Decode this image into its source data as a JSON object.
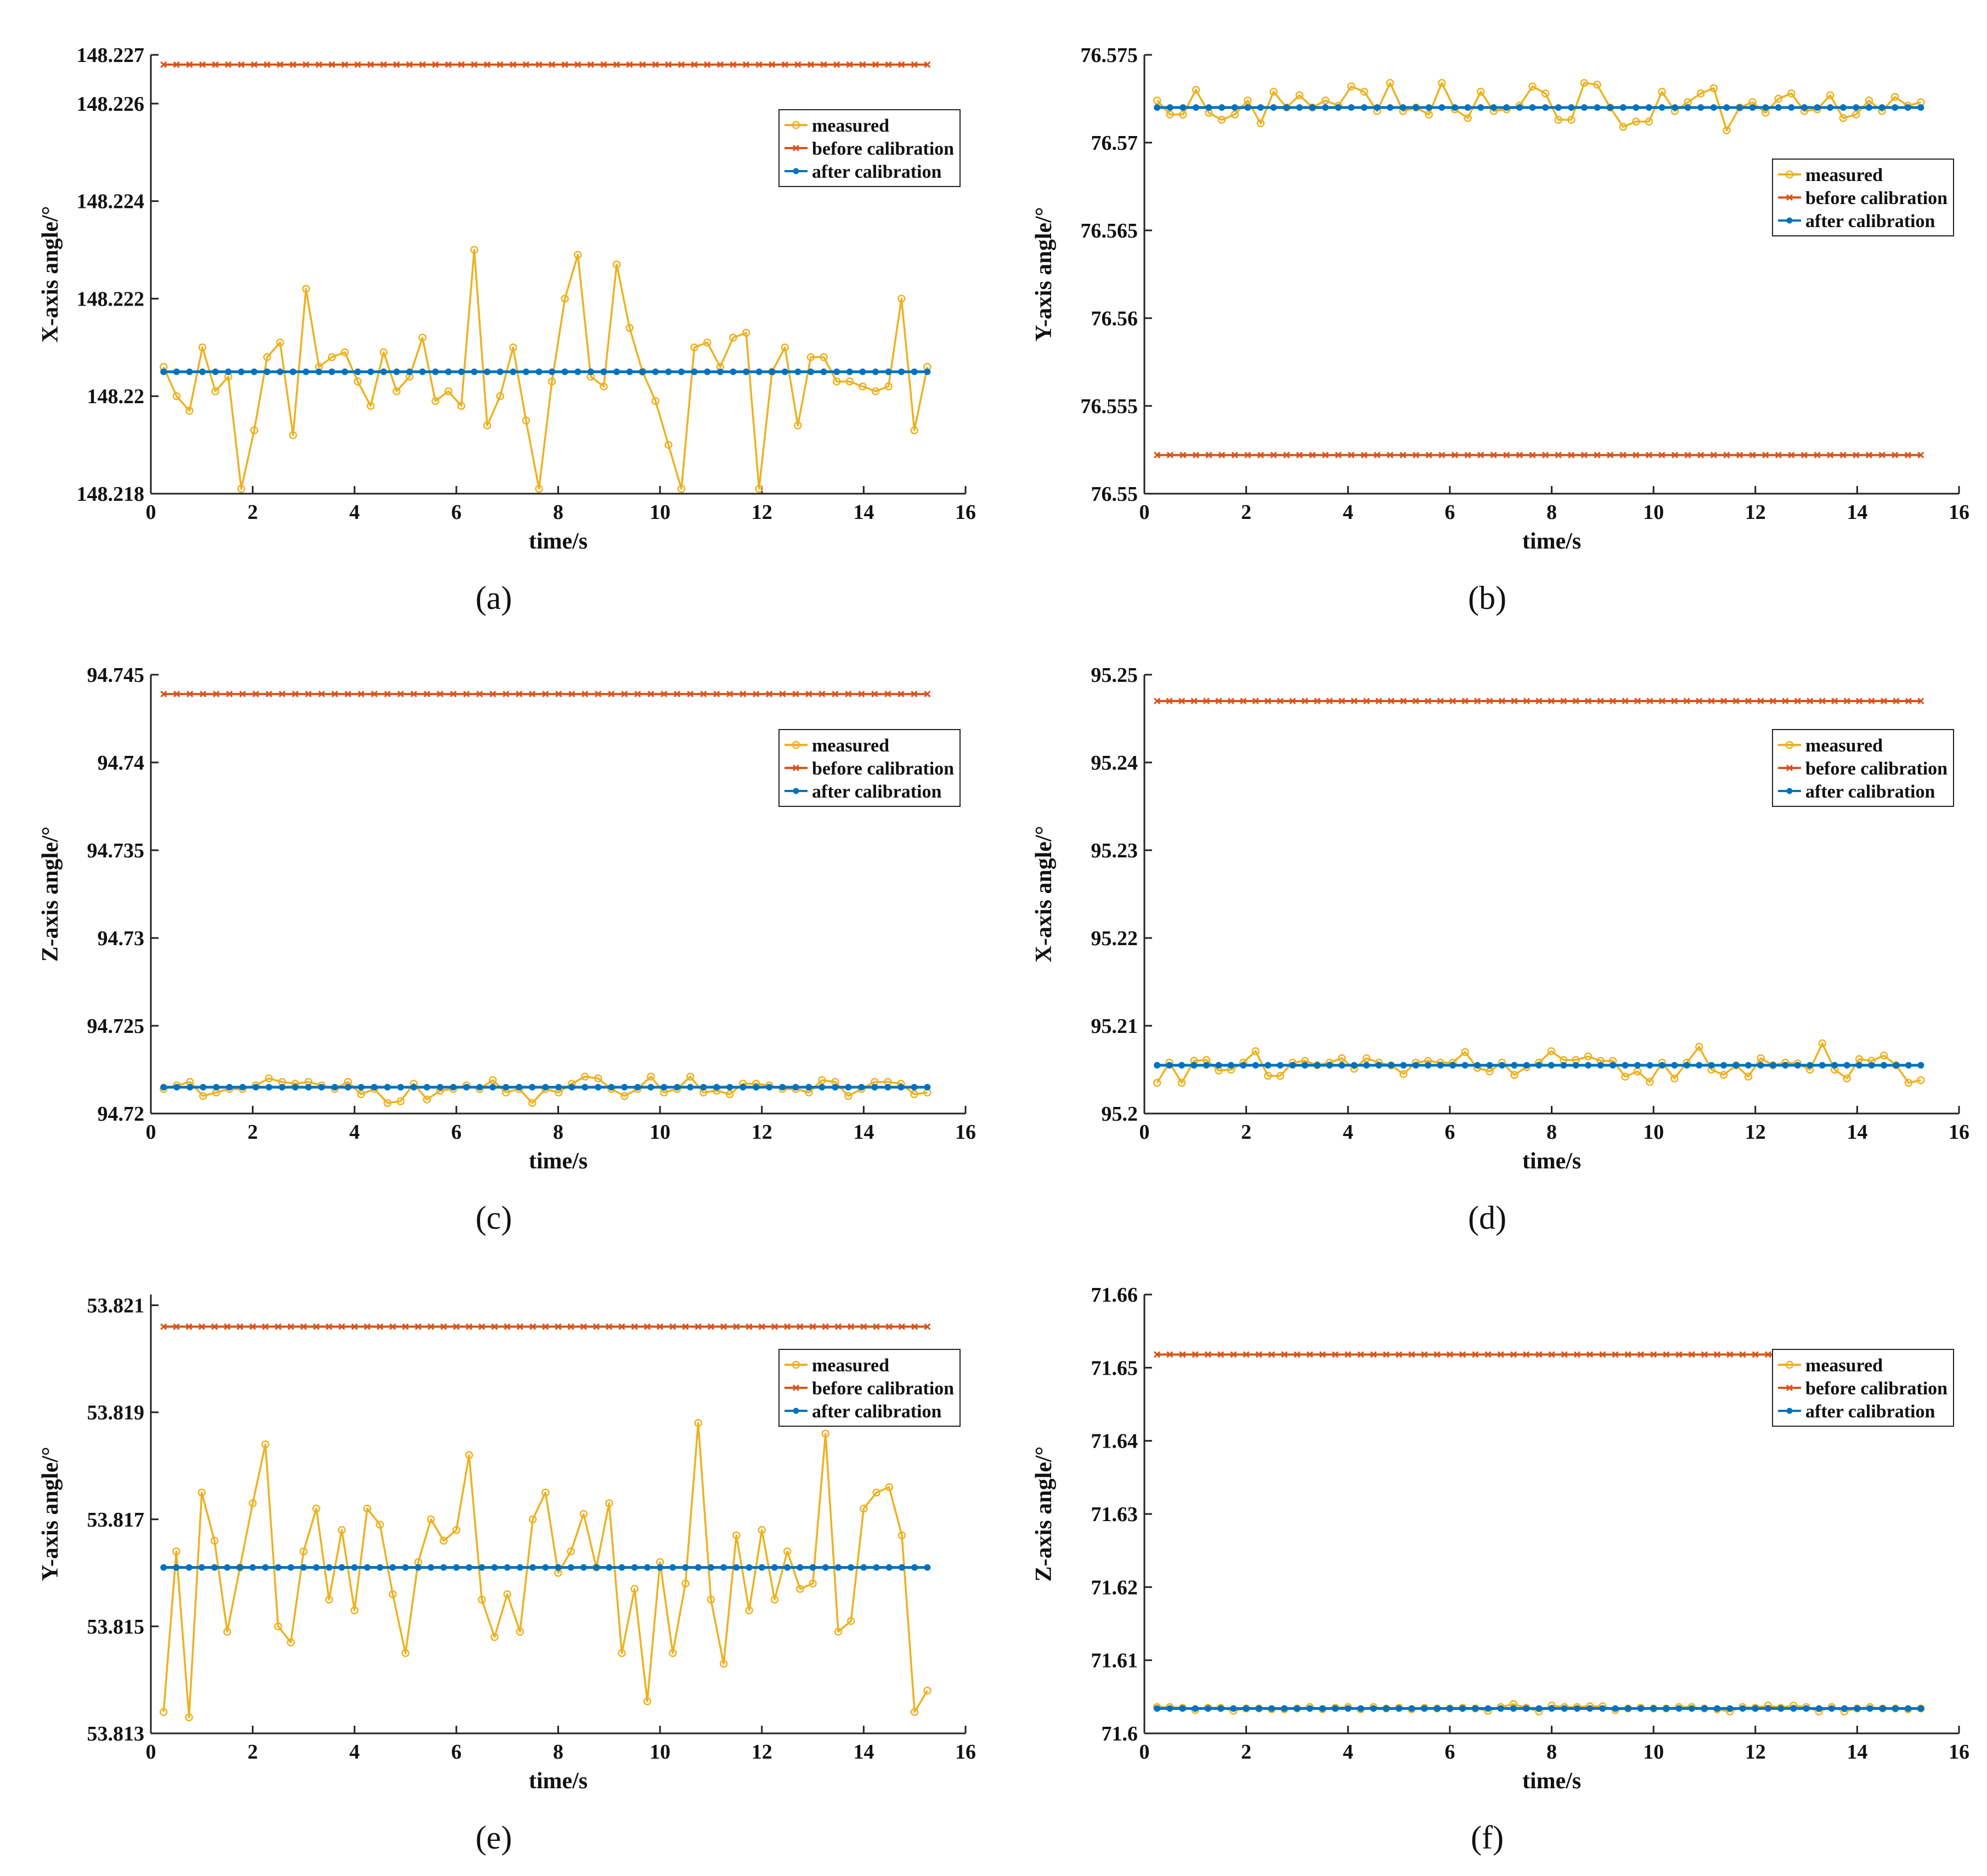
{
  "chart_data": [
    {
      "type": "line",
      "caption": "(a)",
      "xlabel": "time/s",
      "ylabel": "X-axis angle/°",
      "xlim": [
        0,
        16
      ],
      "ylim": [
        148.218,
        148.227
      ],
      "xticks": [
        "0",
        "2",
        "4",
        "6",
        "8",
        "10",
        "12",
        "14",
        "16"
      ],
      "yticks": [
        "148.218",
        "148.22",
        "148.222",
        "148.224",
        "148.226",
        "148.227"
      ],
      "ytick_values": [
        148.218,
        148.22,
        148.222,
        148.224,
        148.226,
        148.227
      ],
      "legend_position": "top-right",
      "series": [
        {
          "name": "measured",
          "color": "#EDB120",
          "marker": "circle-open",
          "values": [
            148.2206,
            148.22,
            148.2197,
            148.221,
            148.2201,
            148.2204,
            148.2181,
            148.2193,
            148.2208,
            148.2211,
            148.2192,
            148.2222,
            148.2206,
            148.2208,
            148.2209,
            148.2203,
            148.2198,
            148.2209,
            148.2201,
            148.2204,
            148.2212,
            148.2199,
            148.2201,
            148.2198,
            148.223,
            148.2194,
            148.22,
            148.221,
            148.2195,
            148.2181,
            148.2203,
            148.222,
            148.2229,
            148.2204,
            148.2202,
            148.2227,
            148.2214,
            148.2205,
            148.2199,
            148.219,
            148.2181,
            148.221,
            148.2211,
            148.2206,
            148.2212,
            148.2213,
            148.2181,
            148.2205,
            148.221,
            148.2194,
            148.2208,
            148.2208,
            148.2203,
            148.2203,
            148.2202,
            148.2201,
            148.2202,
            148.222,
            148.2193,
            148.2206
          ]
        },
        {
          "name": "before calibration",
          "color": "#D95319",
          "marker": "x",
          "constant": 148.2268
        },
        {
          "name": "after calibration",
          "color": "#0072BD",
          "marker": "dot",
          "constant": 148.2205
        }
      ]
    },
    {
      "type": "line",
      "caption": "(b)",
      "xlabel": "time/s",
      "ylabel": "Y-axis angle/°",
      "xlim": [
        0,
        16
      ],
      "ylim": [
        76.55,
        76.575
      ],
      "xticks": [
        "0",
        "2",
        "4",
        "6",
        "8",
        "10",
        "12",
        "14",
        "16"
      ],
      "yticks": [
        "76.55",
        "76.555",
        "76.56",
        "76.565",
        "76.57",
        "76.575"
      ],
      "ytick_values": [
        76.55,
        76.555,
        76.56,
        76.565,
        76.57,
        76.575
      ],
      "legend_position": "top-right",
      "series": [
        {
          "name": "measured",
          "color": "#EDB120",
          "marker": "circle-open",
          "values": [
            76.5724,
            76.5716,
            76.5716,
            76.573,
            76.5717,
            76.5713,
            76.5716,
            76.5724,
            76.5711,
            76.5729,
            76.572,
            76.5727,
            76.572,
            76.5724,
            76.5721,
            76.5732,
            76.5729,
            76.5718,
            76.5734,
            76.5718,
            76.572,
            76.5716,
            76.5734,
            76.5719,
            76.5714,
            76.5729,
            76.5718,
            76.5719,
            76.5721,
            76.5732,
            76.5728,
            76.5713,
            76.5713,
            76.5734,
            76.5733,
            76.572,
            76.5709,
            76.5712,
            76.5712,
            76.5729,
            76.5718,
            76.5723,
            76.5728,
            76.5731,
            76.5707,
            76.572,
            76.5723,
            76.5717,
            76.5725,
            76.5728,
            76.5718,
            76.5719,
            76.5727,
            76.5714,
            76.5716,
            76.5724,
            76.5718,
            76.5726,
            76.5721,
            76.5723
          ]
        },
        {
          "name": "before calibration",
          "color": "#D95319",
          "marker": "x",
          "constant": 76.5522
        },
        {
          "name": "after calibration",
          "color": "#0072BD",
          "marker": "dot",
          "constant": 76.572
        }
      ]
    },
    {
      "type": "line",
      "caption": "(c)",
      "xlabel": "time/s",
      "ylabel": "Z-axis angle/°",
      "xlim": [
        0,
        16
      ],
      "ylim": [
        94.72,
        94.745
      ],
      "xticks": [
        "0",
        "2",
        "4",
        "6",
        "8",
        "10",
        "12",
        "14",
        "16"
      ],
      "yticks": [
        "94.72",
        "94.725",
        "94.73",
        "94.735",
        "94.74",
        "94.745"
      ],
      "ytick_values": [
        94.72,
        94.725,
        94.73,
        94.735,
        94.74,
        94.745
      ],
      "legend_position": "top-right",
      "series": [
        {
          "name": "measured",
          "color": "#EDB120",
          "marker": "circle-open",
          "values": [
            94.7214,
            94.7216,
            94.7218,
            94.721,
            94.7212,
            94.7214,
            94.7214,
            94.7216,
            94.722,
            94.7218,
            94.7217,
            94.7218,
            94.7216,
            94.7214,
            94.7218,
            94.7211,
            94.7214,
            94.7206,
            94.7207,
            94.7217,
            94.7208,
            94.7213,
            94.7214,
            94.7216,
            94.7214,
            94.7219,
            94.7212,
            94.7214,
            94.7206,
            94.7214,
            94.7212,
            94.7217,
            94.7221,
            94.722,
            94.7214,
            94.721,
            94.7214,
            94.7221,
            94.7212,
            94.7214,
            94.7221,
            94.7212,
            94.7213,
            94.7211,
            94.7217,
            94.7217,
            94.7216,
            94.7214,
            94.7214,
            94.7212,
            94.7219,
            94.7218,
            94.721,
            94.7214,
            94.7218,
            94.7218,
            94.7217,
            94.7211,
            94.7212
          ]
        },
        {
          "name": "before calibration",
          "color": "#D95319",
          "marker": "x",
          "constant": 94.7439
        },
        {
          "name": "after calibration",
          "color": "#0072BD",
          "marker": "dot",
          "constant": 94.7215
        }
      ]
    },
    {
      "type": "line",
      "caption": "(d)",
      "xlabel": "time/s",
      "ylabel": "X-axis angle/°",
      "xlim": [
        0,
        16
      ],
      "ylim": [
        95.2,
        95.25
      ],
      "xticks": [
        "0",
        "2",
        "4",
        "6",
        "8",
        "10",
        "12",
        "14",
        "16"
      ],
      "yticks": [
        "95.2",
        "95.21",
        "95.22",
        "95.23",
        "95.24",
        "95.25"
      ],
      "ytick_values": [
        95.2,
        95.21,
        95.22,
        95.23,
        95.24,
        95.25
      ],
      "legend_position": "top-right",
      "series": [
        {
          "name": "measured",
          "color": "#EDB120",
          "marker": "circle-open",
          "values": [
            95.2035,
            95.2058,
            95.2035,
            95.206,
            95.2061,
            95.2049,
            95.205,
            95.2058,
            95.2071,
            95.2043,
            95.2043,
            95.2058,
            95.206,
            95.2055,
            95.2058,
            95.2063,
            95.2051,
            95.2063,
            95.2058,
            95.2055,
            95.2045,
            95.2058,
            95.206,
            95.2058,
            95.2058,
            95.207,
            95.2052,
            95.2048,
            95.2058,
            95.2044,
            95.2053,
            95.2058,
            95.2071,
            95.2061,
            95.2061,
            95.2065,
            95.206,
            95.206,
            95.2042,
            95.2048,
            95.2036,
            95.2058,
            95.204,
            95.2058,
            95.2076,
            95.205,
            95.2044,
            95.2055,
            95.2042,
            95.2063,
            95.2055,
            95.2058,
            95.2057,
            95.205,
            95.208,
            95.205,
            95.204,
            95.2062,
            95.206,
            95.2066,
            95.2055,
            95.2035,
            95.2038
          ]
        },
        {
          "name": "before calibration",
          "color": "#D95319",
          "marker": "x",
          "constant": 95.247
        },
        {
          "name": "after calibration",
          "color": "#0072BD",
          "marker": "dot",
          "constant": 95.2055
        }
      ]
    },
    {
      "type": "line",
      "caption": "(e)",
      "xlabel": "time/s",
      "ylabel": "Y-axis angle/°",
      "xlim": [
        0,
        16
      ],
      "ylim": [
        53.813,
        53.8212
      ],
      "xticks": [
        "0",
        "2",
        "4",
        "6",
        "8",
        "10",
        "12",
        "14",
        "16"
      ],
      "yticks": [
        "53.813",
        "53.815",
        "53.817",
        "53.819",
        "53.821"
      ],
      "ytick_values": [
        53.813,
        53.815,
        53.817,
        53.819,
        53.821
      ],
      "legend_position": "top-right",
      "series": [
        {
          "name": "measured",
          "color": "#EDB120",
          "marker": "circle-open",
          "values": [
            53.8134,
            53.8164,
            53.8133,
            53.8175,
            53.8166,
            53.8149,
            53.8161,
            53.8173,
            53.8184,
            53.815,
            53.8147,
            53.8164,
            53.8172,
            53.8155,
            53.8168,
            53.8153,
            53.8172,
            53.8169,
            53.8156,
            53.8145,
            53.8162,
            53.817,
            53.8166,
            53.8168,
            53.8182,
            53.8155,
            53.8148,
            53.8156,
            53.8149,
            53.817,
            53.8175,
            53.816,
            53.8164,
            53.8171,
            53.8161,
            53.8173,
            53.8145,
            53.8157,
            53.8136,
            53.8162,
            53.8145,
            53.8158,
            53.8188,
            53.8155,
            53.8143,
            53.8167,
            53.8153,
            53.8168,
            53.8155,
            53.8164,
            53.8157,
            53.8158,
            53.8186,
            53.8149,
            53.8151,
            53.8172,
            53.8175,
            53.8176,
            53.8167,
            53.8134,
            53.8138
          ]
        },
        {
          "name": "before calibration",
          "color": "#D95319",
          "marker": "x",
          "constant": 53.8206
        },
        {
          "name": "after calibration",
          "color": "#0072BD",
          "marker": "dot",
          "constant": 53.8161
        }
      ]
    },
    {
      "type": "line",
      "caption": "(f)",
      "xlabel": "time/s",
      "ylabel": "Z-axis angle/°",
      "xlim": [
        0,
        16
      ],
      "ylim": [
        71.6,
        71.66
      ],
      "xticks": [
        "0",
        "2",
        "4",
        "6",
        "8",
        "10",
        "12",
        "14",
        "16"
      ],
      "yticks": [
        "71.6",
        "71.61",
        "71.62",
        "71.63",
        "71.64",
        "71.65",
        "71.66"
      ],
      "ytick_values": [
        71.6,
        71.61,
        71.62,
        71.63,
        71.64,
        71.65,
        71.66
      ],
      "legend_position": "top-right",
      "series": [
        {
          "name": "measured",
          "color": "#EDB120",
          "marker": "circle-open",
          "values": [
            71.6036,
            71.6036,
            71.6035,
            71.6032,
            71.6035,
            71.6035,
            71.6031,
            71.6034,
            71.6034,
            71.6033,
            71.6033,
            71.6034,
            71.6036,
            71.6033,
            71.6035,
            71.6036,
            71.6033,
            71.6036,
            71.6034,
            71.6035,
            71.6033,
            71.6035,
            71.6034,
            71.6034,
            71.6035,
            71.6034,
            71.6031,
            71.6036,
            71.604,
            71.6035,
            71.603,
            71.6038,
            71.6036,
            71.6036,
            71.6037,
            71.6037,
            71.6032,
            71.6034,
            71.6035,
            71.6034,
            71.6034,
            71.6036,
            71.6036,
            71.6034,
            71.6033,
            71.603,
            71.6036,
            71.6035,
            71.6038,
            71.6035,
            71.6038,
            71.6036,
            71.603,
            71.6036,
            71.603,
            71.6034,
            71.6036,
            71.6034,
            71.6034,
            71.6033,
            71.6034
          ]
        },
        {
          "name": "before calibration",
          "color": "#D95319",
          "marker": "x",
          "constant": 71.6518
        },
        {
          "name": "after calibration",
          "color": "#0072BD",
          "marker": "dot",
          "constant": 71.6034
        }
      ]
    }
  ]
}
